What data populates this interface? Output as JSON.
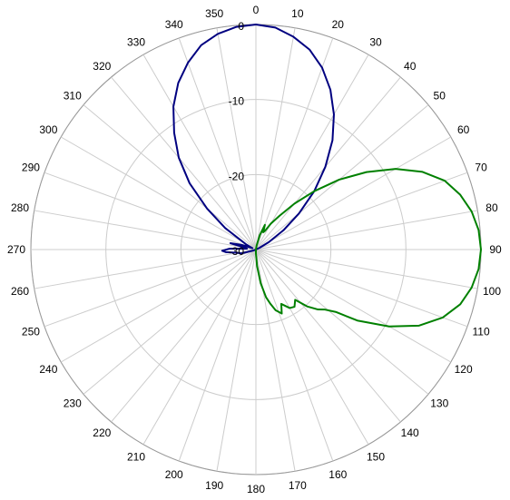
{
  "chart_data": {
    "type": "polar-line",
    "angle_unit": "degrees",
    "angle_zero": "top",
    "angle_direction": "clockwise",
    "angle_ticks": [
      0,
      10,
      20,
      30,
      40,
      50,
      60,
      70,
      80,
      90,
      100,
      110,
      120,
      130,
      140,
      150,
      160,
      170,
      180,
      190,
      200,
      210,
      220,
      230,
      240,
      250,
      260,
      270,
      280,
      290,
      300,
      310,
      320,
      330,
      340,
      350
    ],
    "angle_tick_labels": [
      "0",
      "10",
      "20",
      "30",
      "40",
      "50",
      "60",
      "70",
      "80",
      "90",
      "100",
      "110",
      "120",
      "130",
      "140",
      "150",
      "160",
      "170",
      "180",
      "190",
      "200",
      "210",
      "220",
      "230",
      "240",
      "250",
      "260",
      "270",
      "280",
      "290",
      "300",
      "310",
      "320",
      "330",
      "340",
      "350"
    ],
    "radial_range": [
      -30,
      0
    ],
    "radial_ticks": [
      0,
      -10,
      -20,
      -30
    ],
    "radial_tick_labels": [
      "0",
      "-10",
      "-20",
      "-30"
    ],
    "grid": true,
    "series": [
      {
        "color": "#000080",
        "points": [
          [
            0,
            0
          ],
          [
            5,
            -0.3
          ],
          [
            10,
            -1.2
          ],
          [
            15,
            -2.4
          ],
          [
            20,
            -4.2
          ],
          [
            25,
            -6.5
          ],
          [
            30,
            -9.2
          ],
          [
            35,
            -12.2
          ],
          [
            40,
            -15.6
          ],
          [
            45,
            -19
          ],
          [
            50,
            -22.5
          ],
          [
            55,
            -25.5
          ],
          [
            60,
            -28
          ],
          [
            65,
            -29.5
          ],
          [
            70,
            -30
          ],
          [
            80,
            -30
          ],
          [
            90,
            -30
          ],
          [
            100,
            -30
          ],
          [
            110,
            -30
          ],
          [
            120,
            -30
          ],
          [
            130,
            -30
          ],
          [
            140,
            -30
          ],
          [
            150,
            -30
          ],
          [
            160,
            -30
          ],
          [
            170,
            -30
          ],
          [
            180,
            -30
          ],
          [
            190,
            -30
          ],
          [
            200,
            -30
          ],
          [
            210,
            -30
          ],
          [
            220,
            -30
          ],
          [
            230,
            -30
          ],
          [
            240,
            -30
          ],
          [
            250,
            -29.6
          ],
          [
            255,
            -28
          ],
          [
            260,
            -27.5
          ],
          [
            265,
            -26
          ],
          [
            268,
            -25.5
          ],
          [
            272,
            -26.5
          ],
          [
            276,
            -28.8
          ],
          [
            280,
            -28.5
          ],
          [
            284,
            -26.5
          ],
          [
            288,
            -28
          ],
          [
            292,
            -29.5
          ],
          [
            298,
            -28.5
          ],
          [
            305,
            -25
          ],
          [
            310,
            -21.5
          ],
          [
            315,
            -17.5
          ],
          [
            320,
            -14
          ],
          [
            325,
            -11
          ],
          [
            330,
            -8
          ],
          [
            335,
            -5.5
          ],
          [
            340,
            -3.5
          ],
          [
            345,
            -1.8
          ],
          [
            350,
            -0.8
          ],
          [
            355,
            -0.2
          ],
          [
            360,
            0
          ]
        ]
      },
      {
        "color": "#008000",
        "points": [
          [
            0,
            -30
          ],
          [
            5,
            -30
          ],
          [
            10,
            -29.5
          ],
          [
            15,
            -28
          ],
          [
            20,
            -26.5
          ],
          [
            23,
            -27.5
          ],
          [
            26,
            -27.2
          ],
          [
            30,
            -26
          ],
          [
            35,
            -24.5
          ],
          [
            40,
            -22
          ],
          [
            45,
            -19
          ],
          [
            50,
            -15.5
          ],
          [
            55,
            -12
          ],
          [
            60,
            -8.5
          ],
          [
            65,
            -5.5
          ],
          [
            70,
            -3.2
          ],
          [
            75,
            -1.8
          ],
          [
            80,
            -0.8
          ],
          [
            85,
            -0.2
          ],
          [
            90,
            0
          ],
          [
            95,
            -0.2
          ],
          [
            100,
            -0.8
          ],
          [
            105,
            -1.8
          ],
          [
            110,
            -3.5
          ],
          [
            115,
            -6
          ],
          [
            120,
            -9.5
          ],
          [
            125,
            -13.5
          ],
          [
            128,
            -16.5
          ],
          [
            131,
            -17.8
          ],
          [
            134,
            -18.5
          ],
          [
            138,
            -19.8
          ],
          [
            142,
            -21.5
          ],
          [
            146,
            -20.8
          ],
          [
            150,
            -21
          ],
          [
            155,
            -22
          ],
          [
            158,
            -20.8
          ],
          [
            162,
            -21.5
          ],
          [
            165,
            -22.5
          ],
          [
            168,
            -23.5
          ],
          [
            172,
            -25.5
          ],
          [
            176,
            -27.8
          ],
          [
            180,
            -29.5
          ],
          [
            185,
            -30
          ],
          [
            190,
            -30
          ],
          [
            200,
            -30
          ],
          [
            210,
            -30
          ],
          [
            220,
            -30
          ],
          [
            230,
            -30
          ],
          [
            240,
            -30
          ],
          [
            250,
            -30
          ],
          [
            260,
            -30
          ],
          [
            270,
            -30
          ],
          [
            280,
            -30
          ],
          [
            290,
            -30
          ],
          [
            300,
            -30
          ],
          [
            310,
            -30
          ],
          [
            320,
            -30
          ],
          [
            330,
            -30
          ],
          [
            340,
            -30
          ],
          [
            350,
            -30
          ],
          [
            360,
            -30
          ]
        ]
      }
    ]
  }
}
